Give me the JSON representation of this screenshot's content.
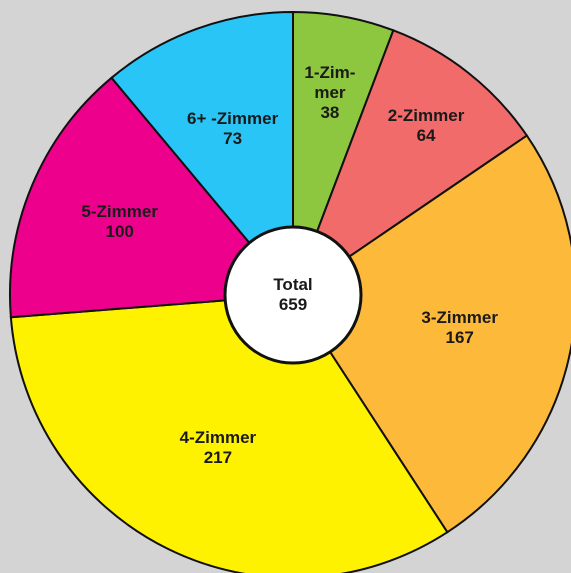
{
  "chart_data": {
    "type": "pie",
    "categories": [
      "1-Zim­mer",
      "2-Zimmer",
      "3-Zimmer",
      "4-Zimmer",
      "5-Zimmer",
      "6+ -Zimmer"
    ],
    "values": [
      38,
      64,
      167,
      217,
      100,
      73
    ],
    "colors": [
      "#8dc63f",
      "#f26b6b",
      "#fdb93a",
      "#fff200",
      "#ec008c",
      "#29c5f6"
    ],
    "center_label": "Total",
    "center_value": 659
  }
}
